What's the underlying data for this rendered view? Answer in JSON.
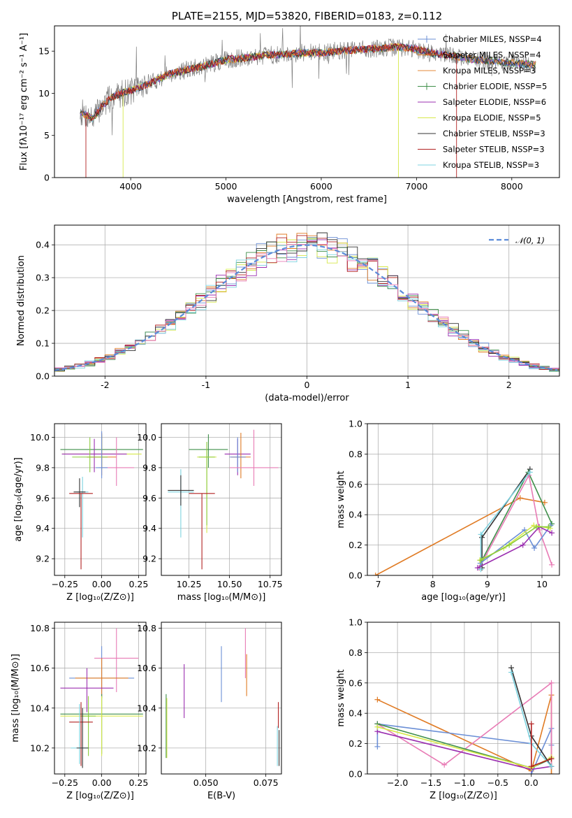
{
  "colors": {
    "chabrier_miles": "#6b8fd6",
    "salpeter_miles": "#e07b24",
    "kroupa_miles": "#e68a3a",
    "chabrier_elodie": "#3f8f4a",
    "salpeter_elodie": "#9b2fb0",
    "kroupa_elodie": "#d6e84a",
    "chabrier_stelib": "#333333",
    "salpeter_stelib": "#b22222",
    "kroupa_stelib": "#7dd3e0",
    "pink": "#e87bb5",
    "lime": "#8ccc3a",
    "normal": "#5b8bd9",
    "spectrum": "#7f7f7f"
  },
  "chart_data": [
    {
      "id": "spectrum",
      "type": "line",
      "title": "PLATE=2155, MJD=53820, FIBERID=0183, z=0.112",
      "xlabel": "wavelength [Angstrom, rest frame]",
      "ylabel": "Flux [fλ10⁻¹⁷ erg cm⁻² s⁻¹ A⁻¹]",
      "xlim": [
        3200,
        8500
      ],
      "ylim": [
        0,
        18
      ],
      "xticks": [
        4000,
        5000,
        6000,
        7000,
        8000
      ],
      "yticks": [
        0,
        5,
        10,
        15
      ],
      "legend_position": "right",
      "legend": [
        {
          "label": "Chabrier MILES, N_SSP=4",
          "text": "Chabrier MILES, NSSP=4",
          "color_key": "chabrier_miles"
        },
        {
          "label": "Salpeter MILES, N_SSP=4",
          "text": "Salpeter MILES, NSSP=4",
          "color_key": "salpeter_miles"
        },
        {
          "label": "Kroupa MILES, N_SSP=3",
          "text": "Kroupa MILES, NSSP=3",
          "color_key": "kroupa_miles"
        },
        {
          "label": "Chabrier ELODIE, N_SSP=5",
          "text": "Chabrier ELODIE, NSSP=5",
          "color_key": "chabrier_elodie"
        },
        {
          "label": "Salpeter ELODIE, N_SSP=6",
          "text": "Salpeter ELODIE, NSSP=6",
          "color_key": "salpeter_elodie"
        },
        {
          "label": "Kroupa ELODIE, N_SSP=5",
          "text": "Kroupa ELODIE, NSSP=5",
          "color_key": "kroupa_elodie"
        },
        {
          "label": "Chabrier STELIB, N_SSP=3",
          "text": "Chabrier STELIB, NSSP=3",
          "color_key": "chabrier_stelib"
        },
        {
          "label": "Salpeter STELIB, N_SSP=3",
          "text": "Salpeter STELIB, NSSP=3",
          "color_key": "salpeter_stelib"
        },
        {
          "label": "Kroupa STELIB, N_SSP=3",
          "text": "Kroupa STELIB, NSSP=3",
          "color_key": "kroupa_stelib"
        }
      ],
      "continuum": {
        "x": [
          3470,
          3600,
          3700,
          3800,
          3900,
          4000,
          4200,
          4400,
          4600,
          4800,
          5000,
          5200,
          5400,
          5600,
          5800,
          6000,
          6200,
          6400,
          6600,
          6800,
          7000,
          7200,
          7400,
          7600,
          7800,
          8000,
          8250
        ],
        "y": [
          7.8,
          7.0,
          8.5,
          9.5,
          10.0,
          10.3,
          11.2,
          12.3,
          12.8,
          13.3,
          14.0,
          14.2,
          14.5,
          14.6,
          14.8,
          14.8,
          15.0,
          15.2,
          15.3,
          15.5,
          15.2,
          14.7,
          14.4,
          14.0,
          13.8,
          13.6,
          13.4
        ]
      },
      "model_starts": {
        "salpeter_stelib": 3530,
        "kroupa_elodie": 3920
      },
      "model_ends": {
        "kroupa_elodie": 6810,
        "salpeter_stelib": 7420
      }
    },
    {
      "id": "residuals",
      "type": "line",
      "xlabel": "(data-model)/error",
      "ylabel": "Normed distribution",
      "xlim": [
        -2.5,
        2.5
      ],
      "ylim": [
        0,
        0.46
      ],
      "xticks": [
        -2,
        -1,
        0,
        1,
        2
      ],
      "yticks": [
        0.0,
        0.1,
        0.2,
        0.3,
        0.4
      ],
      "legend_position": "top-right",
      "reference_label": "𝒩(0, 1)",
      "bin_width": 0.1,
      "histogram_series": [
        "chabrier_miles",
        "salpeter_miles",
        "kroupa_elodie",
        "salpeter_elodie",
        "chabrier_elodie",
        "salpeter_stelib",
        "kroupa_stelib",
        "chabrier_stelib",
        "pink"
      ]
    },
    {
      "id": "age_vs_Z",
      "type": "scatter",
      "xlabel": "Z [log₁₀(Z/Z⊙)]",
      "ylabel": "age  [log₁₀(age/yr)]",
      "xlim": [
        -0.32,
        0.3
      ],
      "ylim": [
        9.09,
        10.09
      ],
      "xticks": [
        -0.25,
        0.0,
        0.25
      ],
      "xticklabels": [
        "−0.25",
        "0.00",
        "0.25"
      ],
      "yticks": [
        9.2,
        9.4,
        9.6,
        9.8,
        10.0
      ],
      "points": [
        {
          "c": "chabrier_elodie",
          "x": 0.0,
          "y": 9.92,
          "xerr": 0.28,
          "yerr": [
            0.12,
            0.1
          ]
        },
        {
          "c": "kroupa_elodie",
          "x": 0.0,
          "y": 9.89,
          "xerr": 0.27,
          "yerr": [
            0.1,
            0.1
          ]
        },
        {
          "c": "salpeter_elodie",
          "x": -0.05,
          "y": 9.89,
          "xerr": 0.22,
          "yerr": [
            0.12,
            0.1
          ]
        },
        {
          "c": "salpeter_miles",
          "x": 0.0,
          "y": 9.87,
          "xerr": 0.1,
          "yerr": [
            0.12,
            0.16
          ]
        },
        {
          "c": "lime",
          "x": -0.08,
          "y": 9.87,
          "xerr": 0.12,
          "yerr": [
            0.1,
            0.13
          ]
        },
        {
          "c": "pink",
          "x": 0.1,
          "y": 9.8,
          "xerr": 0.12,
          "yerr": [
            0.12,
            0.2
          ]
        },
        {
          "c": "chabrier_miles",
          "x": 0.0,
          "y": 9.8,
          "xerr": 0.04,
          "yerr": [
            0.07,
            0.24
          ]
        },
        {
          "c": "kroupa_stelib",
          "x": -0.13,
          "y": 9.64,
          "xerr": 0.04,
          "yerr": [
            0.3,
            0.1
          ]
        },
        {
          "c": "chabrier_stelib",
          "x": -0.15,
          "y": 9.64,
          "xerr": 0.04,
          "yerr": [
            0.1,
            0.09
          ]
        },
        {
          "c": "salpeter_stelib",
          "x": -0.14,
          "y": 9.63,
          "xerr": 0.08,
          "yerr": [
            0.5,
            0.0
          ]
        }
      ]
    },
    {
      "id": "age_vs_mass",
      "type": "scatter",
      "xlabel": "mass [log₁₀(M/M⊙)]",
      "ylabel": "",
      "xlim": [
        10.08,
        10.82
      ],
      "ylim": [
        9.09,
        10.09
      ],
      "xticks": [
        10.25,
        10.5,
        10.75
      ],
      "xticklabels": [
        "10.25",
        "10.50",
        "10.75"
      ],
      "yticks": [
        9.2,
        9.4,
        9.6,
        9.8,
        10.0
      ],
      "points": [
        {
          "c": "chabrier_elodie",
          "x": 10.37,
          "y": 9.92,
          "xerr": 0.12,
          "yerr": [
            0.12,
            0.1
          ]
        },
        {
          "c": "salpeter_elodie",
          "x": 10.55,
          "y": 9.89,
          "xerr": 0.08,
          "yerr": [
            0.14,
            0.1
          ]
        },
        {
          "c": "kroupa_elodie",
          "x": 10.36,
          "y": 9.87,
          "xerr": 0.06,
          "yerr": [
            0.5,
            0.05
          ]
        },
        {
          "c": "lime",
          "x": 10.36,
          "y": 9.87,
          "xerr": 0.05,
          "yerr": [
            0.45,
            0.1
          ]
        },
        {
          "c": "salpeter_miles",
          "x": 10.57,
          "y": 9.87,
          "xerr": 0.06,
          "yerr": [
            0.14,
            0.16
          ]
        },
        {
          "c": "chabrier_miles",
          "x": 10.55,
          "y": 9.87,
          "xerr": 0.05,
          "yerr": [
            0.1,
            0.13
          ]
        },
        {
          "c": "pink",
          "x": 10.65,
          "y": 9.8,
          "xerr": 0.15,
          "yerr": [
            0.12,
            0.25
          ]
        },
        {
          "c": "kroupa_stelib",
          "x": 10.2,
          "y": 9.64,
          "xerr": 0.08,
          "yerr": [
            0.3,
            0.15
          ]
        },
        {
          "c": "chabrier_stelib",
          "x": 10.2,
          "y": 9.65,
          "xerr": 0.08,
          "yerr": [
            0.1,
            0.1
          ]
        },
        {
          "c": "salpeter_stelib",
          "x": 10.33,
          "y": 9.63,
          "xerr": 0.08,
          "yerr": [
            0.5,
            0.0
          ]
        }
      ]
    },
    {
      "id": "weight_vs_age",
      "type": "line",
      "xlabel": "age  [log₁₀(age/yr)]",
      "ylabel": "mass weight",
      "xlim": [
        6.8,
        10.32
      ],
      "ylim": [
        0,
        1.0
      ],
      "xticks": [
        7,
        8,
        9,
        10
      ],
      "yticks": [
        0.0,
        0.2,
        0.4,
        0.6,
        0.8,
        1.0
      ],
      "series": [
        {
          "c": "salpeter_miles",
          "x": [
            6.95,
            9.6,
            10.05
          ],
          "y": [
            0.0,
            0.51,
            0.48
          ]
        },
        {
          "c": "chabrier_stelib",
          "x": [
            8.9,
            8.9,
            9.78
          ],
          "y": [
            0.05,
            0.25,
            0.7
          ]
        },
        {
          "c": "chabrier_elodie",
          "x": [
            8.85,
            8.9,
            9.75,
            10.18
          ],
          "y": [
            0.05,
            0.1,
            0.68,
            0.34
          ]
        },
        {
          "c": "pink",
          "x": [
            8.85,
            9.76,
            9.95,
            10.18
          ],
          "y": [
            0.05,
            0.66,
            0.3,
            0.07
          ]
        },
        {
          "c": "kroupa_stelib",
          "x": [
            8.88,
            8.88,
            9.78
          ],
          "y": [
            0.04,
            0.27,
            0.68
          ]
        },
        {
          "c": "chabrier_miles",
          "x": [
            8.87,
            9.68,
            9.86,
            10.16
          ],
          "y": [
            0.08,
            0.3,
            0.18,
            0.33
          ]
        },
        {
          "c": "salpeter_elodie",
          "x": [
            8.82,
            9.65,
            9.95,
            10.18
          ],
          "y": [
            0.05,
            0.2,
            0.32,
            0.28
          ]
        },
        {
          "c": "kroupa_elodie",
          "x": [
            8.86,
            9.3,
            9.85,
            10.15
          ],
          "y": [
            0.1,
            0.18,
            0.33,
            0.31
          ]
        },
        {
          "c": "lime",
          "x": [
            8.88,
            9.4,
            9.9,
            10.12
          ],
          "y": [
            0.1,
            0.2,
            0.32,
            0.32
          ]
        }
      ]
    },
    {
      "id": "mass_vs_Z",
      "type": "scatter",
      "xlabel": "Z [log₁₀(Z/Z⊙)]",
      "ylabel": "mass [log₁₀(M/M⊙)]",
      "xlim": [
        -0.32,
        0.3
      ],
      "ylim": [
        10.07,
        10.83
      ],
      "xticks": [
        -0.25,
        0.0,
        0.25
      ],
      "xticklabels": [
        "−0.25",
        "0.00",
        "0.25"
      ],
      "yticks": [
        10.2,
        10.4,
        10.6,
        10.8
      ],
      "points": [
        {
          "c": "pink",
          "x": 0.1,
          "y": 10.65,
          "xerr": 0.15,
          "yerr": [
            0.17,
            0.15
          ]
        },
        {
          "c": "chabrier_miles",
          "x": 0.0,
          "y": 10.55,
          "xerr": 0.22,
          "yerr": [
            0.1,
            0.16
          ]
        },
        {
          "c": "salpeter_miles",
          "x": 0.0,
          "y": 10.55,
          "xerr": 0.18,
          "yerr": [
            0.1,
            0.1
          ]
        },
        {
          "c": "salpeter_elodie",
          "x": -0.1,
          "y": 10.5,
          "xerr": 0.18,
          "yerr": [
            0.12,
            0.1
          ]
        },
        {
          "c": "chabrier_elodie",
          "x": 0.0,
          "y": 10.37,
          "xerr": 0.28,
          "yerr": [
            0.2,
            0.1
          ]
        },
        {
          "c": "kroupa_elodie",
          "x": 0.0,
          "y": 10.36,
          "xerr": 0.28,
          "yerr": [
            0.2,
            0.1
          ]
        },
        {
          "c": "lime",
          "x": -0.09,
          "y": 10.36,
          "xerr": 0.05,
          "yerr": [
            0.2,
            0.1
          ]
        },
        {
          "c": "salpeter_stelib",
          "x": -0.14,
          "y": 10.33,
          "xerr": 0.08,
          "yerr": [
            0.22,
            0.1
          ]
        },
        {
          "c": "kroupa_stelib",
          "x": -0.15,
          "y": 10.2,
          "xerr": 0.06,
          "yerr": [
            0.08,
            0.22
          ]
        },
        {
          "c": "chabrier_stelib",
          "x": -0.13,
          "y": 10.2,
          "xerr": 0.04,
          "yerr": [
            0.1,
            0.2
          ]
        }
      ]
    },
    {
      "id": "mass_vs_ebv",
      "type": "scatter",
      "xlabel": "E(B-V)",
      "ylabel": "",
      "xlim": [
        0.0315,
        0.0815
      ],
      "ylim": [
        10.07,
        10.83
      ],
      "xticks": [
        0.05,
        0.075
      ],
      "xticklabels": [
        "0.050",
        "0.075"
      ],
      "yticks": [
        10.2,
        10.4,
        10.6,
        10.8
      ],
      "points": [
        {
          "c": "chabrier_elodie",
          "x": 0.0335,
          "y": 10.3,
          "yerr": [
            0.15,
            0.17
          ]
        },
        {
          "c": "kroupa_elodie",
          "x": 0.0338,
          "y": 10.3,
          "yerr": [
            0.15,
            0.15
          ]
        },
        {
          "c": "salpeter_elodie",
          "x": 0.041,
          "y": 10.48,
          "yerr": [
            0.13,
            0.14
          ]
        },
        {
          "c": "chabrier_miles",
          "x": 0.0565,
          "y": 10.57,
          "yerr": [
            0.14,
            0.14
          ]
        },
        {
          "c": "salpeter_miles",
          "x": 0.067,
          "y": 10.56,
          "yerr": [
            0.1,
            0.11
          ]
        },
        {
          "c": "pink",
          "x": 0.0665,
          "y": 10.67,
          "yerr": [
            0.12,
            0.13
          ]
        },
        {
          "c": "salpeter_stelib",
          "x": 0.0802,
          "y": 10.36,
          "yerr": [
            0.06,
            0.07
          ]
        },
        {
          "c": "kroupa_stelib",
          "x": 0.0798,
          "y": 10.2,
          "yerr": [
            0.09,
            0.11
          ]
        },
        {
          "c": "chabrier_stelib",
          "x": 0.0805,
          "y": 10.2,
          "yerr": [
            0.09,
            0.09
          ]
        }
      ]
    },
    {
      "id": "weight_vs_Z",
      "type": "line",
      "xlabel": "Z [log₁₀(Z/Z⊙)]",
      "ylabel": "mass weight",
      "xlim": [
        -2.45,
        0.42
      ],
      "ylim": [
        0,
        1.0
      ],
      "xticks": [
        -2.0,
        -1.5,
        -1.0,
        -0.5,
        0.0
      ],
      "xticklabels": [
        "−2.0",
        "−1.5",
        "−1.0",
        "−0.5",
        "0.0"
      ],
      "yticks": [
        0.0,
        0.2,
        0.4,
        0.6,
        0.8,
        1.0
      ],
      "series": [
        {
          "c": "salpeter_miles",
          "x": [
            -2.3,
            0.0,
            0.3,
            0.3
          ],
          "y": [
            0.49,
            0.02,
            0.52,
            0.0
          ]
        },
        {
          "c": "chabrier_miles",
          "x": [
            -2.3,
            -2.3,
            0.0,
            0.0,
            0.3,
            0.3
          ],
          "y": [
            0.18,
            0.33,
            0.2,
            0.0,
            0.3,
            0.19
          ]
        },
        {
          "c": "pink",
          "x": [
            -2.3,
            -1.3,
            0.3,
            0.3
          ],
          "y": [
            0.33,
            0.06,
            0.6,
            0.05
          ]
        },
        {
          "c": "salpeter_elodie",
          "x": [
            -2.3,
            0.0,
            0.3
          ],
          "y": [
            0.28,
            0.03,
            0.05
          ]
        },
        {
          "c": "chabrier_elodie",
          "x": [
            -2.3,
            0.0,
            0.3
          ],
          "y": [
            0.33,
            0.04,
            0.1
          ]
        },
        {
          "c": "kroupa_elodie",
          "x": [
            -2.3,
            0.0,
            0.3
          ],
          "y": [
            0.31,
            0.04,
            0.11
          ]
        },
        {
          "c": "chabrier_stelib",
          "x": [
            -0.3,
            0.0,
            0.3
          ],
          "y": [
            0.7,
            0.25,
            0.05
          ]
        },
        {
          "c": "kroupa_stelib",
          "x": [
            -0.3,
            0.0,
            0.3
          ],
          "y": [
            0.67,
            0.2,
            0.05
          ]
        },
        {
          "c": "salpeter_stelib",
          "x": [
            0.0,
            0.0,
            0.3
          ],
          "y": [
            0.33,
            0.05,
            0.1
          ]
        }
      ]
    }
  ]
}
